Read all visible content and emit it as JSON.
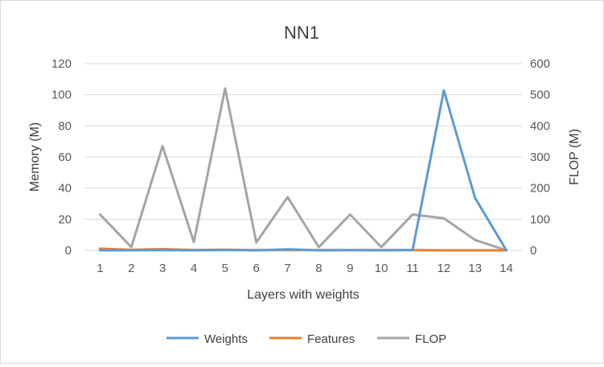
{
  "chart_data": {
    "type": "line",
    "title": "NN1",
    "xlabel": "Layers with weights",
    "ylabel": "Memory (M)",
    "y2label": "FLOP (M)",
    "categories": [
      "1",
      "2",
      "3",
      "4",
      "5",
      "6",
      "7",
      "8",
      "9",
      "10",
      "11",
      "12",
      "13",
      "14"
    ],
    "ylim": [
      0,
      120
    ],
    "y_ticks": [
      0,
      20,
      40,
      60,
      80,
      100,
      120
    ],
    "y2lim": [
      0,
      600
    ],
    "y2_ticks": [
      0,
      100,
      200,
      300,
      400,
      500,
      600
    ],
    "grid": "horizontal",
    "legend_position": "bottom",
    "series": [
      {
        "name": "Weights",
        "axis": "left",
        "color": "#5b9bd5",
        "values": [
          0,
          0,
          0.1,
          0,
          0.2,
          0,
          0.6,
          0,
          0.1,
          0,
          0.2,
          102.8,
          33.6,
          0
        ]
      },
      {
        "name": "Features",
        "axis": "left",
        "color": "#ed7d31",
        "values": [
          1.1,
          0.3,
          0.8,
          0.2,
          0.4,
          0.1,
          0.1,
          0.1,
          0.1,
          0.1,
          0.1,
          0.0,
          0.0,
          0.0
        ]
      },
      {
        "name": "FLOP",
        "axis": "right",
        "color": "#a5a5a5",
        "values": [
          115,
          10,
          335,
          27,
          520,
          25,
          171,
          10,
          115,
          10,
          115,
          103,
          33,
          0
        ]
      }
    ]
  }
}
